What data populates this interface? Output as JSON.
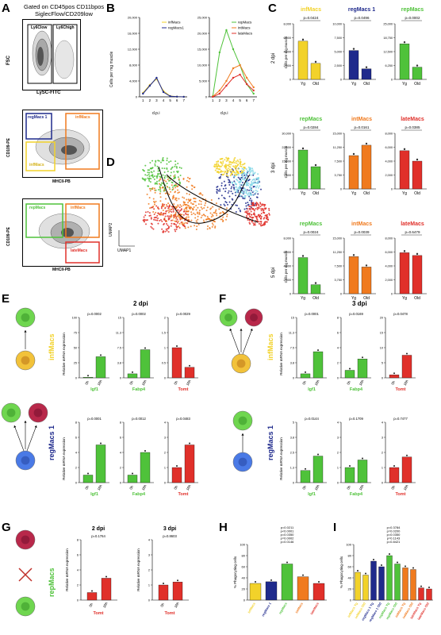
{
  "panels": {
    "A": {
      "letter": "A",
      "gate_line1": "Gated on CD45pos CD11bpos",
      "gate_line2": "SiglecFlow/CD209low",
      "plot1": {
        "ylabel": "FSC",
        "xlabel": "LySC-FITC",
        "gate_low": "Ly6Clow",
        "gate_high": "Ly6Chigh"
      },
      "plot2": {
        "ylabel": "CD109-PE",
        "xlabel": "MHCII-PB",
        "gates": [
          "regMacs 1",
          "infMacs",
          "infMacs"
        ]
      },
      "plot3": {
        "ylabel": "CD109-PE",
        "xlabel": "MHCII-PB",
        "gates": [
          "repMacs",
          "infMacs",
          "lateMacs"
        ]
      }
    },
    "B": {
      "letter": "B",
      "ylabel": "Cells per mg muscle",
      "xlabel": "d.p.i",
      "colors": {
        "infMacs": "#f2d22a",
        "regMacs1": "#1f2a8c",
        "repMacs": "#4fc23a",
        "intMacs": "#f07a1e",
        "lateMacs": "#e0302a"
      }
    },
    "C": {
      "letter": "C",
      "rows": [
        "2 dpi",
        "3 dpi",
        "5 dpi"
      ],
      "ylabel": "Cells per mg muscle",
      "x_yg": "Yg",
      "x_old": "Old"
    },
    "D": {
      "letter": "D",
      "axis1": "UMAP1",
      "axis2": "UMAP2"
    },
    "E": {
      "letter": "E",
      "title": "2 dpi",
      "row1_label": "infMacs",
      "row2_label": "regMacs 1",
      "ylabel": "Relative mRNA expression",
      "genes": [
        "Igf1",
        "Fabp4",
        "Tomt"
      ],
      "xticks": [
        "0h",
        "16h"
      ]
    },
    "F": {
      "letter": "F",
      "title": "3 dpi",
      "row1_label": "infMacs",
      "row2_label": "regMacs 1",
      "ylabel": "Relative mRNA expression",
      "genes": [
        "Igf1",
        "Fabp4",
        "Tomt"
      ],
      "xticks": [
        "0h",
        "16h"
      ]
    },
    "G": {
      "letter": "G",
      "label": "repMacs",
      "titles": [
        "2 dpi",
        "3 dpi"
      ],
      "ylabel": "Relative mRNA expression",
      "gene": "Tomt",
      "pvals": [
        "p=0.1764",
        "p=0.8603"
      ]
    },
    "H": {
      "letter": "H",
      "ylabel": "% Phagocyting cells",
      "categories": [
        "infMacs",
        "regMacs 1",
        "repMacs",
        "intMacs",
        "lateMacs"
      ],
      "pvals": [
        "p=0.0211",
        "p<0.0001",
        "p=0.0350",
        "p=0.0002",
        "p=0.0146"
      ]
    },
    "I": {
      "letter": "I",
      "ylabel": "% Phagocyting cells",
      "categories": [
        "infMacs Yg",
        "infMacs Old",
        "regMacs 1 Yg",
        "regMacs 1 Old",
        "repMacs Yg",
        "repMacs Old",
        "intMacs Yg",
        "intMacs Old",
        "lateMacs Yg",
        "lateMacs Old"
      ],
      "pvals": [
        "p=0.3784",
        "p=0.0200",
        "p=0.0350",
        "p=0.1143",
        "p=0.8421"
      ]
    }
  },
  "chart_data": [
    {
      "type": "line",
      "title": "",
      "xlabel": "d.p.i",
      "ylabel": "Cells per mg muscle",
      "x": [
        1,
        2,
        3,
        4,
        5,
        6,
        7
      ],
      "ylim": [
        0,
        20000
      ],
      "series": [
        {
          "name": "infMacs",
          "values": [
            1000,
            3000,
            4500,
            1500,
            200,
            50,
            10
          ]
        },
        {
          "name": "regMacs1",
          "values": [
            800,
            2800,
            4800,
            1200,
            150,
            40,
            10
          ]
        }
      ]
    },
    {
      "type": "line",
      "title": "",
      "xlabel": "d.p.i",
      "ylabel": "",
      "x": [
        1,
        2,
        3,
        4,
        5,
        6,
        7
      ],
      "ylim": [
        0,
        25000
      ],
      "series": [
        {
          "name": "repMacs",
          "values": [
            200,
            14000,
            21000,
            15000,
            10000,
            4000,
            1000
          ]
        },
        {
          "name": "intMacs",
          "values": [
            100,
            2000,
            5000,
            9000,
            10000,
            6000,
            3000
          ]
        },
        {
          "name": "lateMacs",
          "values": [
            0,
            1000,
            3500,
            6000,
            7000,
            4000,
            2000
          ]
        }
      ]
    },
    {
      "type": "bar",
      "title": "C - 2 dpi",
      "groups": [
        {
          "name": "infMacs",
          "categories": [
            "Yg",
            "Old"
          ],
          "values": [
            5500,
            2300
          ],
          "p": "p=0.0424",
          "ylim": [
            0,
            8000
          ],
          "color": "#f2d22a"
        },
        {
          "name": "regMacs 1",
          "categories": [
            "Yg",
            "Old"
          ],
          "values": [
            5200,
            1900
          ],
          "p": "p=0.0496",
          "ylim": [
            0,
            10000
          ],
          "color": "#1f2a8c"
        },
        {
          "name": "repMacs",
          "categories": [
            "Yg",
            "Old"
          ],
          "values": [
            16000,
            5500
          ],
          "p": "p=0.0002",
          "ylim": [
            0,
            25000
          ],
          "color": "#4fc23a"
        }
      ]
    },
    {
      "type": "bar",
      "title": "C - 3 dpi",
      "groups": [
        {
          "name": "repMacs",
          "categories": [
            "Yg",
            "Old"
          ],
          "values": [
            21000,
            12000
          ],
          "p": "p=0.0284",
          "ylim": [
            0,
            30000
          ],
          "color": "#4fc23a"
        },
        {
          "name": "intMacs",
          "categories": [
            "Yg",
            "Old"
          ],
          "values": [
            9000,
            11800
          ],
          "p": "p=0.0161",
          "ylim": [
            0,
            15000
          ],
          "color": "#f07a1e"
        },
        {
          "name": "lateMacs",
          "categories": [
            "Yg",
            "Old"
          ],
          "values": [
            5500,
            4000
          ],
          "p": "p=0.0385",
          "ylim": [
            0,
            8000
          ],
          "color": "#e0302a"
        }
      ]
    },
    {
      "type": "bar",
      "title": "C - 5 dpi",
      "groups": [
        {
          "name": "repMacs",
          "categories": [
            "Yg",
            "Old"
          ],
          "values": [
            5200,
            1300
          ],
          "p": "p=0.0024",
          "ylim": [
            0,
            8000
          ],
          "color": "#4fc23a"
        },
        {
          "name": "intMacs",
          "categories": [
            "Yg",
            "Old"
          ],
          "values": [
            10000,
            7200
          ],
          "p": "p=0.0039",
          "ylim": [
            0,
            15000
          ],
          "color": "#f07a1e"
        },
        {
          "name": "lateMacs",
          "categories": [
            "Yg",
            "Old"
          ],
          "values": [
            5900,
            5500
          ],
          "p": "p=0.6479",
          "ylim": [
            0,
            8000
          ],
          "color": "#e0302a"
        }
      ]
    },
    {
      "type": "bar",
      "title": "E - 2 dpi",
      "rows": [
        {
          "label": "infMacs",
          "genes": [
            {
              "gene": "Igf1",
              "values": [
                1,
                35
              ],
              "p": "p=0.0002",
              "ylim": [
                0,
                100
              ],
              "color": "#4fc23a"
            },
            {
              "gene": "Fabp4",
              "values": [
                1,
                7
              ],
              "p": "p=0.0002",
              "ylim": [
                0,
                15
              ],
              "color": "#4fc23a"
            },
            {
              "gene": "Tomt",
              "values": [
                1,
                0.35
              ],
              "p": "p=0.0029",
              "ylim": [
                0,
                2.0
              ],
              "color": "#e0302a"
            }
          ]
        },
        {
          "label": "regMacs 1",
          "genes": [
            {
              "gene": "Igf1",
              "values": [
                1,
                5
              ],
              "p": "p=0.0001",
              "ylim": [
                0,
                8
              ],
              "color": "#4fc23a"
            },
            {
              "gene": "Fabp4",
              "values": [
                1,
                4
              ],
              "p": "p=0.0012",
              "ylim": [
                0,
                8
              ],
              "color": "#4fc23a"
            },
            {
              "gene": "Tomt",
              "values": [
                1,
                2.5
              ],
              "p": "p=0.0483",
              "ylim": [
                0,
                4
              ],
              "color": "#e0302a"
            }
          ]
        }
      ]
    },
    {
      "type": "bar",
      "title": "F - 3 dpi",
      "rows": [
        {
          "label": "infMacs",
          "genes": [
            {
              "gene": "Igf1",
              "values": [
                1,
                6.5
              ],
              "p": "p=0.0001",
              "ylim": [
                0,
                15
              ],
              "color": "#4fc23a"
            },
            {
              "gene": "Fabp4",
              "values": [
                1,
                2.5
              ],
              "p": "p=0.0169",
              "ylim": [
                0,
                8
              ],
              "color": "#4fc23a"
            },
            {
              "gene": "Tomt",
              "values": [
                1,
                7.5
              ],
              "p": "p=0.0478",
              "ylim": [
                0,
                20
              ],
              "color": "#e0302a"
            }
          ]
        },
        {
          "label": "regMacs 1",
          "genes": [
            {
              "gene": "Igf1",
              "values": [
                1,
                2.2
              ],
              "p": "p=0.0144",
              "ylim": [
                0,
                5
              ],
              "color": "#4fc23a"
            },
            {
              "gene": "Fabp4",
              "values": [
                1,
                1.5
              ],
              "p": "p=0.1709",
              "ylim": [
                0,
                4
              ],
              "color": "#4fc23a"
            },
            {
              "gene": "Tomt",
              "values": [
                1,
                1.7
              ],
              "p": "p=0.7477",
              "ylim": [
                0,
                4
              ],
              "color": "#e0302a"
            }
          ]
        }
      ]
    },
    {
      "type": "bar",
      "title": "G",
      "groups": [
        {
          "name": "2 dpi",
          "categories": [
            "0h",
            "16h"
          ],
          "values": [
            1,
            2.9
          ],
          "p": "p=0.1764",
          "ylim": [
            0,
            8
          ],
          "color": "#e0302a"
        },
        {
          "name": "3 dpi",
          "categories": [
            "0h",
            "16h"
          ],
          "values": [
            1,
            1.2
          ],
          "p": "p=0.8603",
          "ylim": [
            0,
            4
          ],
          "color": "#e0302a"
        }
      ]
    },
    {
      "type": "bar",
      "title": "H",
      "ylabel": "% Phagocyting cells",
      "categories": [
        "infMacs",
        "regMacs 1",
        "repMacs",
        "intMacs",
        "lateMacs"
      ],
      "values": [
        30,
        33,
        65,
        42,
        30
      ],
      "ylim": [
        0,
        100
      ],
      "colors": [
        "#f2d22a",
        "#1f2a8c",
        "#4fc23a",
        "#f07a1e",
        "#e0302a"
      ]
    },
    {
      "type": "bar",
      "title": "I",
      "ylabel": "% Phagocyting cells",
      "categories": [
        "infMacs Yg",
        "infMacs Old",
        "regMacs 1 Yg",
        "regMacs 1 Old",
        "repMacs Yg",
        "repMacs Old",
        "intMacs Yg",
        "intMacs Old",
        "lateMacs Yg",
        "lateMacs Old"
      ],
      "values": [
        50,
        45,
        70,
        60,
        80,
        65,
        58,
        55,
        22,
        20
      ],
      "ylim": [
        0,
        100
      ],
      "colors": [
        "#f2d22a",
        "#f2d22a",
        "#1f2a8c",
        "#1f2a8c",
        "#4fc23a",
        "#4fc23a",
        "#f07a1e",
        "#f07a1e",
        "#e0302a",
        "#e0302a"
      ]
    }
  ]
}
